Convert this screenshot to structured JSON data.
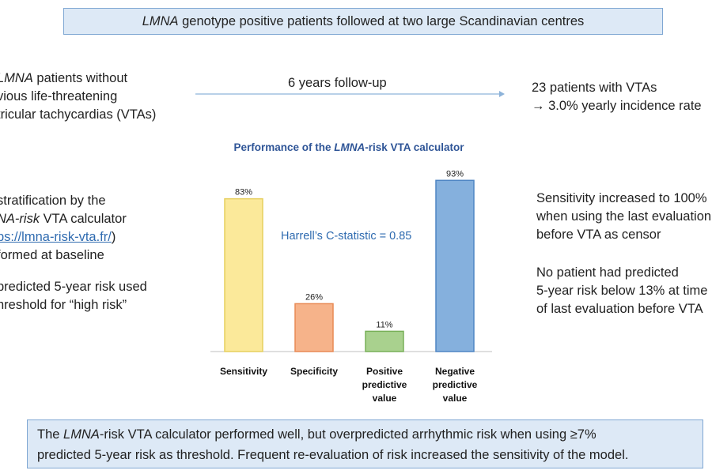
{
  "header": {
    "title_pre": "",
    "title_em": "LMNA",
    "title_post": " genotype positive patients followed at two large Scandinavian centres"
  },
  "left_top": {
    "line1_pre": "",
    "line1_em": "LMNA",
    "line1_post": " patients without",
    "line2": "vious life-threatening",
    "line3": "tricular tachycardias (VTAs)"
  },
  "followup_label": "6 years follow-up",
  "right_top": {
    "line1": "23 patients with VTAs",
    "line2": "→ 3.0% yearly incidence rate"
  },
  "left_mid": {
    "line1": "stratification by the",
    "line2_em": "NA-risk",
    "line2_post": " VTA calculator",
    "line3_link": "ps://lmna-risk-vta.fr/",
    "line3_post": ")",
    "line4": "formed at baseline",
    "line5": "predicted 5-year risk used",
    "line6": "hreshold for “high risk”"
  },
  "right_mid": {
    "line1": "Sensitivity increased to 100%",
    "line2": "when using the last evaluation",
    "line3": "before VTA as censor",
    "line4": "No patient had predicted",
    "line5": "5-year risk below 13% at time",
    "line6": "of last evaluation before VTA"
  },
  "conclusion": {
    "line1_pre": "The ",
    "line1_em": "LMNA",
    "line1_post": "-risk VTA calculator performed well, but overpredicted arrhythmic risk when using ≥7%",
    "line2": "predicted 5-year risk as threshold. Frequent re-evaluation of risk increased the sensitivity of the model."
  },
  "chart_data": {
    "type": "bar",
    "title_pre": "Performance of the ",
    "title_em": "LMNA",
    "title_post": "-risk VTA calculator",
    "annotation": "Harrell’s C-statistic = 0.85",
    "categories": [
      [
        "Sensitivity"
      ],
      [
        "Specificity"
      ],
      [
        "Positive",
        "predictive",
        "value"
      ],
      [
        "Negative",
        "predictive",
        "value"
      ]
    ],
    "values": [
      83,
      26,
      11,
      93
    ],
    "value_labels": [
      "83%",
      "26%",
      "11%",
      "93%"
    ],
    "colors": [
      "#fbe99a",
      "#f6b38a",
      "#a9d18e",
      "#85b0dd"
    ],
    "stroke_colors": [
      "#e6cf5e",
      "#e88a55",
      "#78b058",
      "#4f86c4"
    ],
    "ylim": [
      0,
      100
    ]
  }
}
